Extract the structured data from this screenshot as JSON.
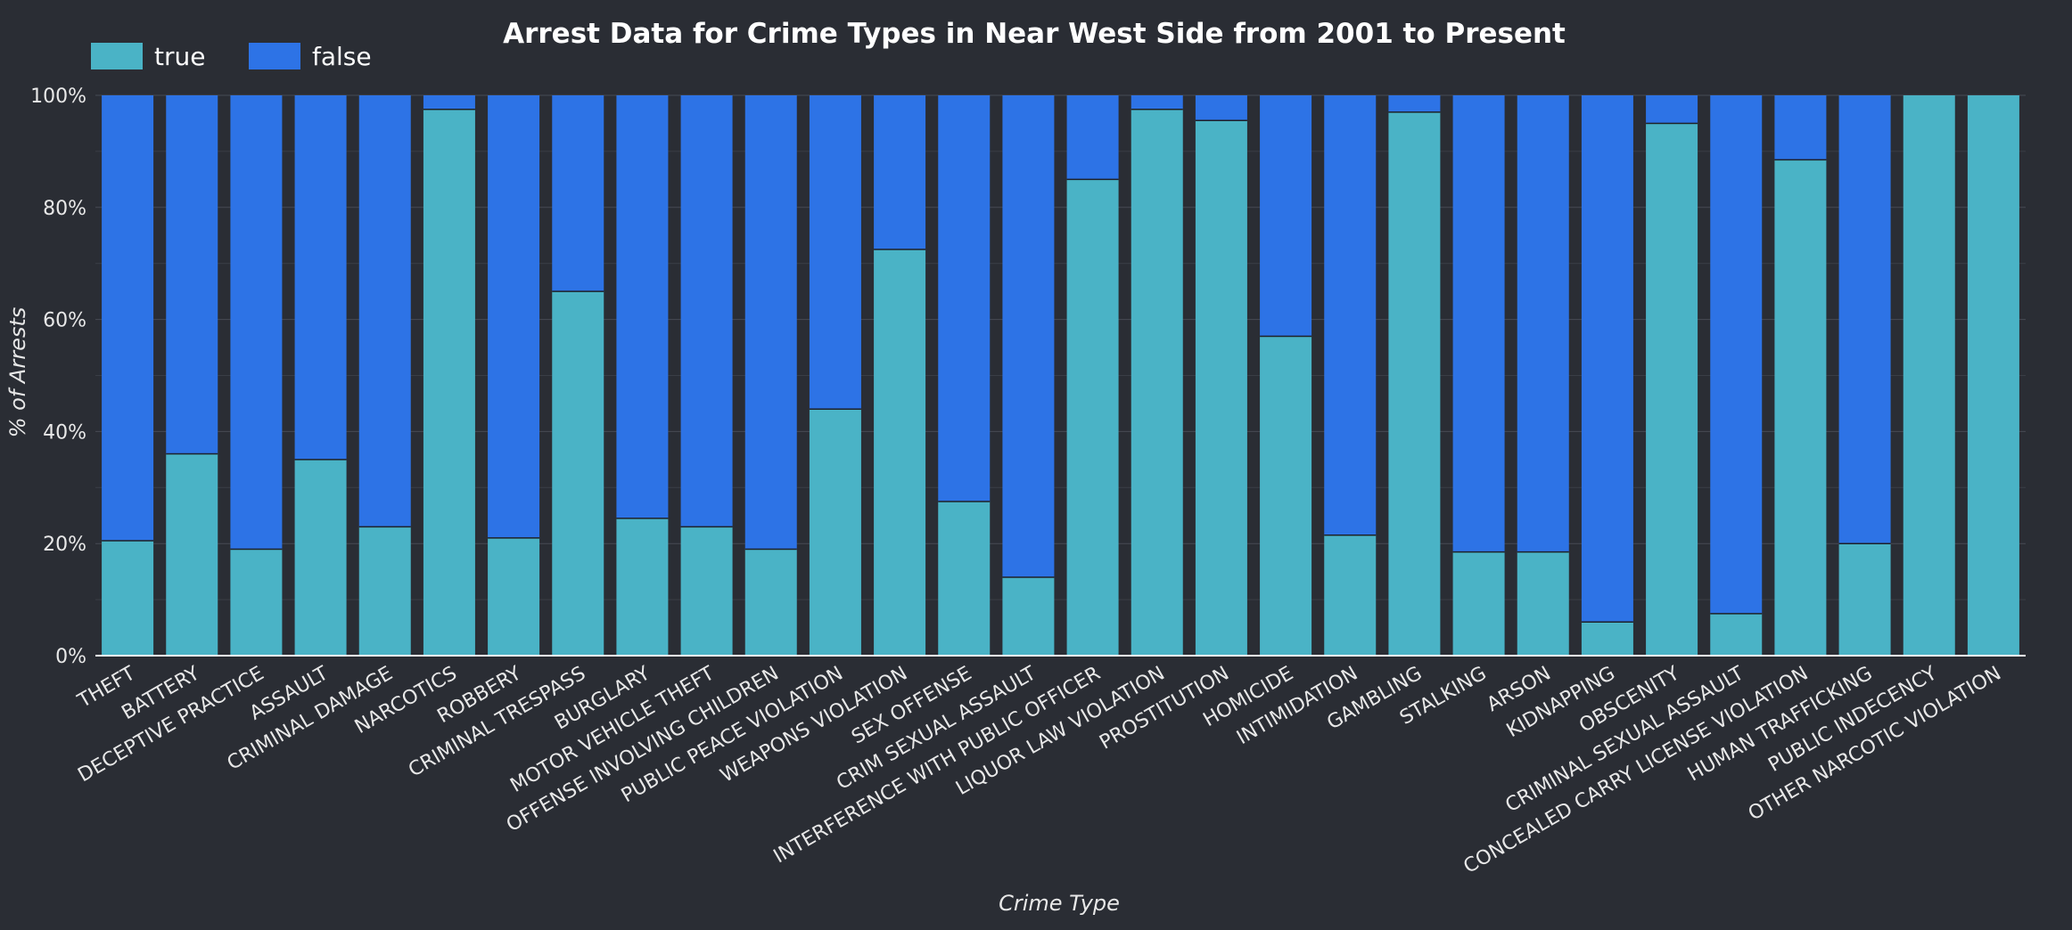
{
  "chart_data": {
    "type": "bar",
    "stacked": true,
    "title": "Arrest Data for Crime Types in Near West Side from 2001 to Present",
    "xlabel": "Crime Type",
    "ylabel": "% of Arrests",
    "ylim": [
      0,
      100
    ],
    "yticks": [
      "0%",
      "20%",
      "40%",
      "60%",
      "80%",
      "100%"
    ],
    "grid": true,
    "legend_position": "top-left",
    "colors": {
      "true": "#4ab3c6",
      "false": "#2d73e6",
      "background": "#2a2d34"
    },
    "categories": [
      "THEFT",
      "BATTERY",
      "DECEPTIVE PRACTICE",
      "ASSAULT",
      "CRIMINAL DAMAGE",
      "NARCOTICS",
      "ROBBERY",
      "CRIMINAL TRESPASS",
      "BURGLARY",
      "MOTOR VEHICLE THEFT",
      "OFFENSE INVOLVING CHILDREN",
      "PUBLIC PEACE VIOLATION",
      "WEAPONS VIOLATION",
      "SEX OFFENSE",
      "CRIM SEXUAL ASSAULT",
      "INTERFERENCE WITH PUBLIC OFFICER",
      "LIQUOR LAW VIOLATION",
      "PROSTITUTION",
      "HOMICIDE",
      "INTIMIDATION",
      "GAMBLING",
      "STALKING",
      "ARSON",
      "KIDNAPPING",
      "OBSCENITY",
      "CRIMINAL SEXUAL ASSAULT",
      "CONCEALED CARRY LICENSE VIOLATION",
      "HUMAN TRAFFICKING",
      "PUBLIC INDECENCY",
      "OTHER NARCOTIC VIOLATION"
    ],
    "series": [
      {
        "name": "true",
        "values": [
          20.5,
          36,
          19,
          35,
          23,
          97.5,
          21,
          65,
          24.5,
          23,
          19,
          44,
          72.5,
          27.5,
          14,
          85,
          97.5,
          95.5,
          57,
          21.5,
          97,
          18.5,
          18.5,
          6,
          95,
          7.5,
          88.5,
          20,
          100,
          100
        ]
      },
      {
        "name": "false",
        "values": [
          79.5,
          64,
          81,
          65,
          77,
          2.5,
          79,
          35,
          75.5,
          77,
          81,
          56,
          27.5,
          72.5,
          86,
          15,
          2.5,
          4.5,
          43,
          78.5,
          3,
          81.5,
          81.5,
          94,
          5,
          92.5,
          11.5,
          80,
          0,
          0
        ]
      }
    ]
  }
}
